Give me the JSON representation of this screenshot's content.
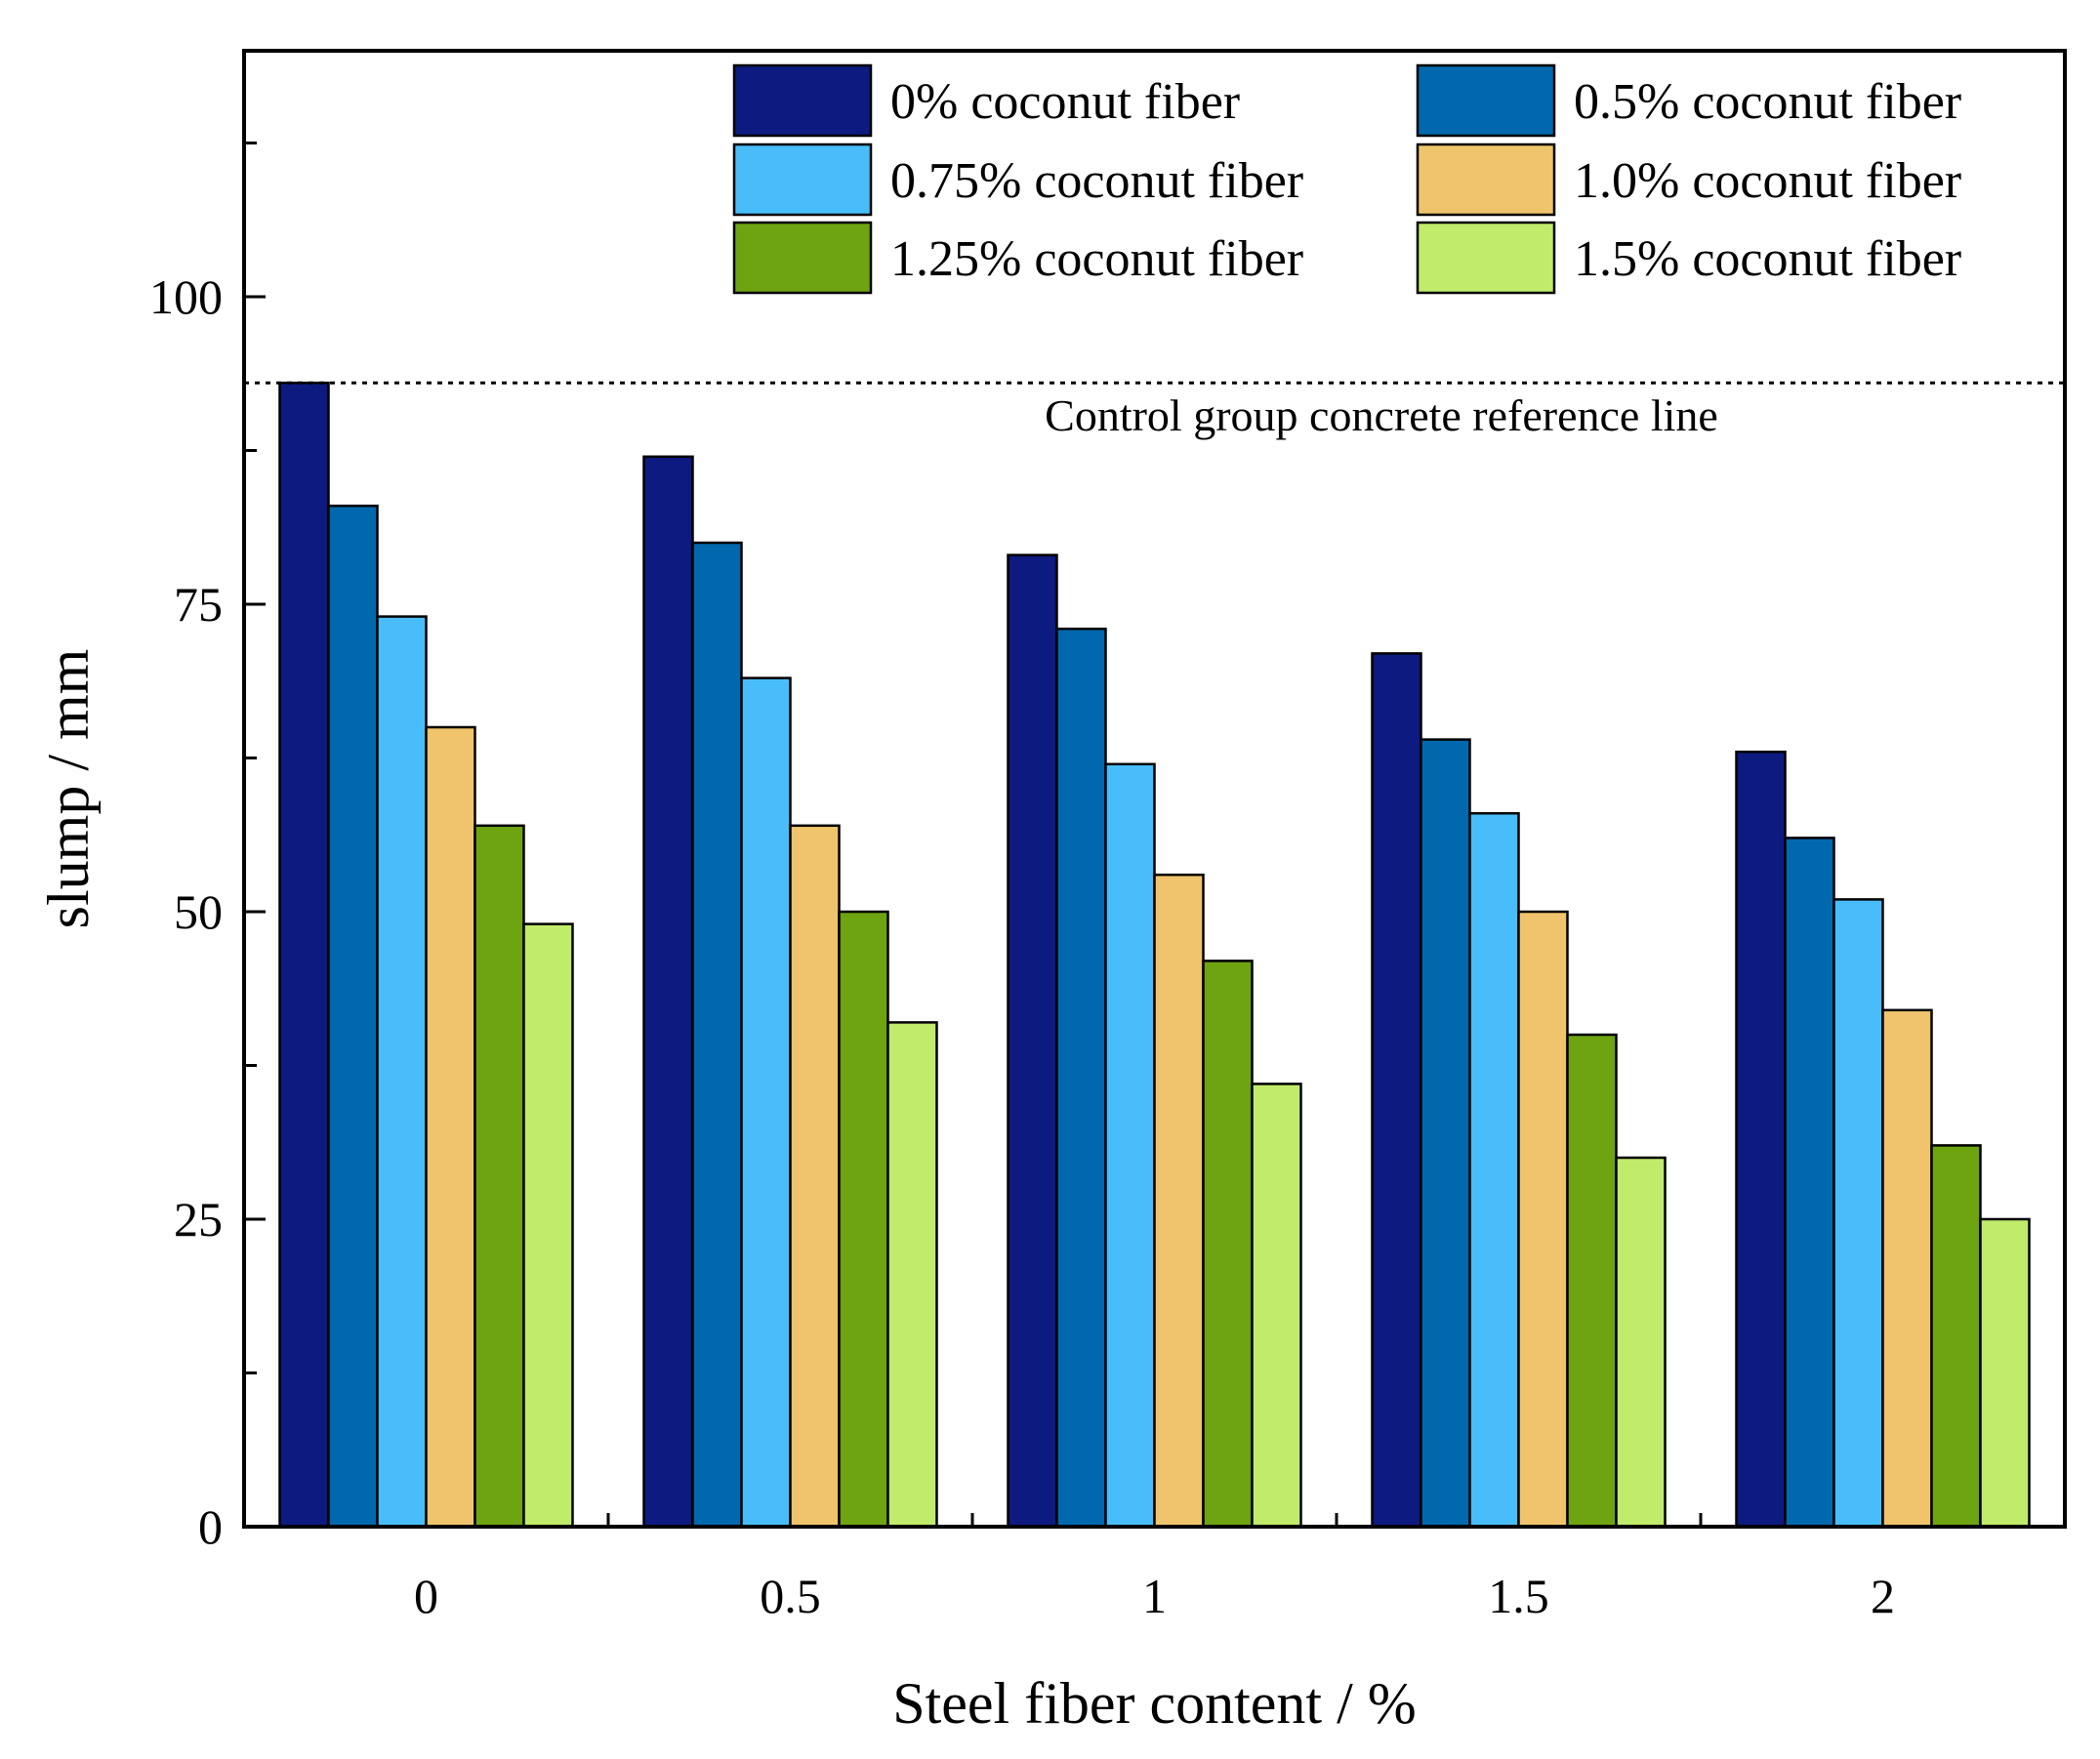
{
  "chart_data": {
    "type": "bar",
    "title": "",
    "xlabel": "Steel fiber content / %",
    "ylabel": "slump / mm",
    "ylim": [
      0,
      120
    ],
    "yticks": [
      0,
      25,
      50,
      75,
      100
    ],
    "categories": [
      "0",
      "0.5",
      "1",
      "1.5",
      "2"
    ],
    "series": [
      {
        "name": "0% coconut fiber",
        "color": "#0d1a80",
        "values": [
          93,
          87,
          79,
          71,
          63
        ]
      },
      {
        "name": "0.5% coconut fiber",
        "color": "#0268ad",
        "values": [
          83,
          80,
          73,
          64,
          56
        ]
      },
      {
        "name": "0.75% coconut fiber",
        "color": "#48bdfa",
        "values": [
          74,
          69,
          62,
          58,
          51
        ]
      },
      {
        "name": "1.0% coconut fiber",
        "color": "#efc46c",
        "values": [
          65,
          57,
          53,
          50,
          42
        ]
      },
      {
        "name": "1.25% coconut fiber",
        "color": "#6ea312",
        "values": [
          57,
          50,
          46,
          40,
          31
        ]
      },
      {
        "name": "1.5% coconut fiber",
        "color": "#c0eb6b",
        "values": [
          49,
          41,
          36,
          30,
          25
        ]
      }
    ],
    "reference_line": {
      "value": 93,
      "label": "Control group concrete reference line",
      "style": "dotted"
    },
    "legend": {
      "placement": "top-right",
      "columns": 2
    },
    "grid": false
  }
}
